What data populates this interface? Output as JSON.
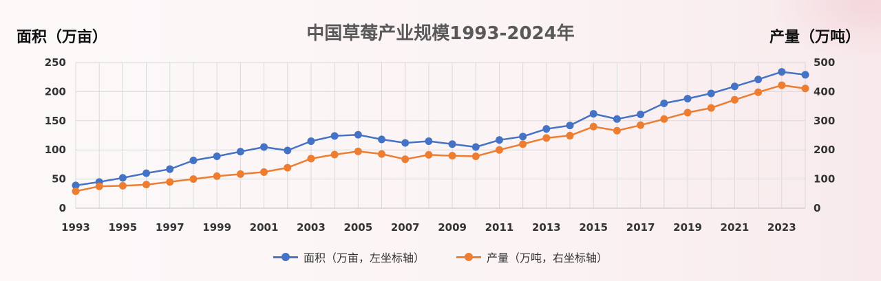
{
  "chart_data": {
    "type": "line",
    "title": "中国草莓产业规模1993-2024年",
    "ylabel_left": "面积（万亩）",
    "ylabel_right": "产量（万吨）",
    "x": [
      1993,
      1994,
      1995,
      1996,
      1997,
      1998,
      1999,
      2000,
      2001,
      2002,
      2003,
      2004,
      2005,
      2006,
      2007,
      2008,
      2009,
      2010,
      2011,
      2012,
      2013,
      2014,
      2015,
      2016,
      2017,
      2018,
      2019,
      2020,
      2021,
      2022,
      2023,
      2024
    ],
    "x_tick_labels": [
      "1993",
      "1995",
      "1997",
      "1999",
      "2001",
      "2003",
      "2005",
      "2007",
      "2009",
      "2011",
      "2013",
      "2015",
      "2017",
      "2019",
      "2021",
      "2023"
    ],
    "ylim_left": [
      0,
      250
    ],
    "yticks_left": [
      "0",
      "50",
      "100",
      "150",
      "200",
      "250"
    ],
    "ylim_right": [
      0,
      500
    ],
    "yticks_right": [
      "0",
      "100",
      "200",
      "300",
      "400",
      "500"
    ],
    "grid": true,
    "legend_position": "bottom",
    "series": [
      {
        "name": "面积（万亩，左坐标轴）",
        "axis": "left",
        "color": "#4472c4",
        "values": [
          39,
          45,
          52,
          60,
          67,
          82,
          89,
          97,
          105,
          99,
          115,
          124,
          126,
          118,
          112,
          115,
          110,
          105,
          117,
          123,
          136,
          142,
          162,
          153,
          161,
          180,
          188,
          197,
          209,
          221,
          234,
          229
        ]
      },
      {
        "name": "产量（万吨，右坐标轴）",
        "axis": "right",
        "color": "#ed7d31",
        "values": [
          58,
          75,
          77,
          81,
          90,
          100,
          110,
          117,
          124,
          139,
          170,
          184,
          195,
          186,
          168,
          183,
          180,
          178,
          200,
          220,
          241,
          249,
          280,
          266,
          285,
          306,
          328,
          344,
          372,
          398,
          422,
          411
        ]
      }
    ]
  }
}
